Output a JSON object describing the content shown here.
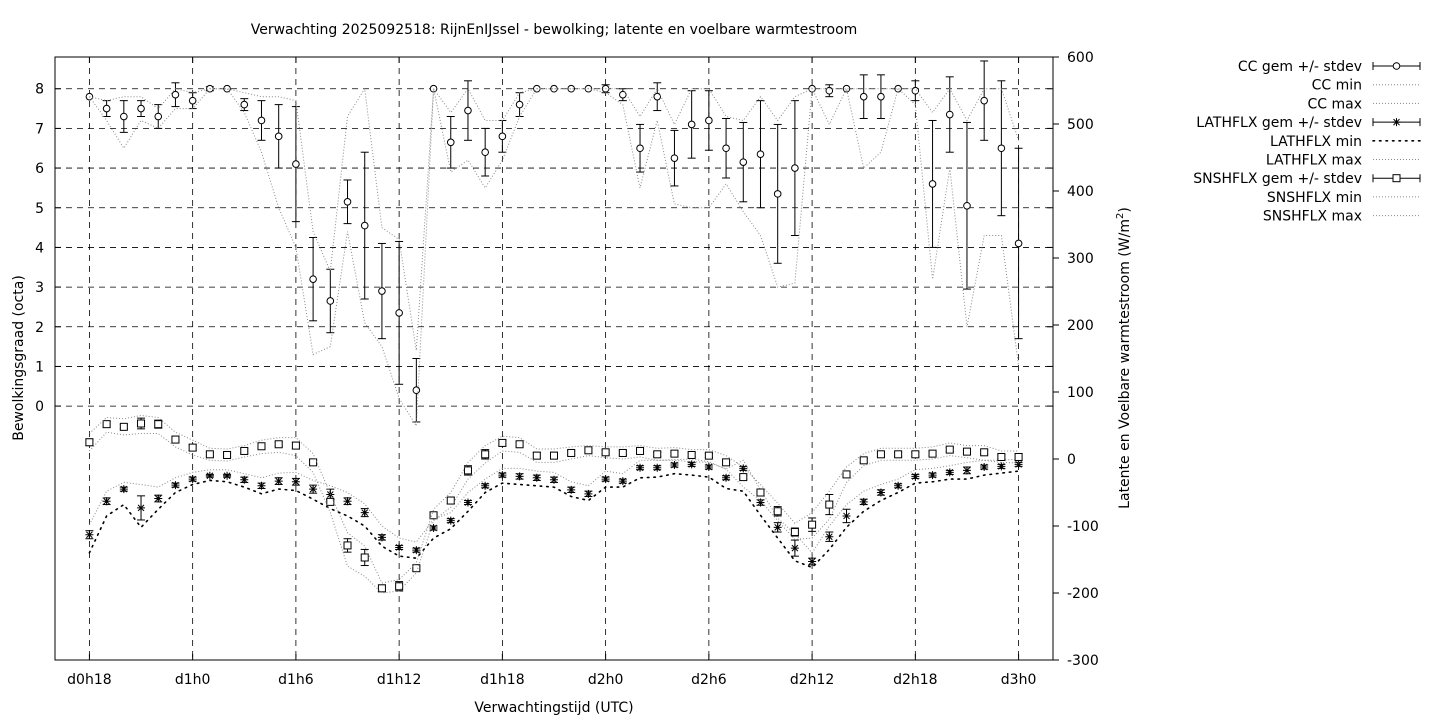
{
  "chart_data": {
    "type": "line",
    "title": "Verwachting 2025092518: RijnEnIJssel - bewolking; latente en voelbare warmtestroom",
    "xlabel": "Verwachtingstijd (UTC)",
    "ylabel": "Bewolkingsgraad (octa)",
    "y2label_main": "Latente en Voelbare warmtestroom (W/m",
    "y2label_sup": "2",
    "y2label_end": ")",
    "x_range_hours": [
      -2,
      56
    ],
    "x_ticks": [
      {
        "h": 0,
        "label": "d0h18"
      },
      {
        "h": 6,
        "label": "d1h0"
      },
      {
        "h": 12,
        "label": "d1h6"
      },
      {
        "h": 18,
        "label": "d1h12"
      },
      {
        "h": 24,
        "label": "d1h18"
      },
      {
        "h": 30,
        "label": "d2h0"
      },
      {
        "h": 36,
        "label": "d2h6"
      },
      {
        "h": 42,
        "label": "d2h12"
      },
      {
        "h": 48,
        "label": "d2h18"
      },
      {
        "h": 54,
        "label": "d3h0"
      }
    ],
    "y_ticks": [
      "0",
      "1",
      "2",
      "3",
      "4",
      "5",
      "6",
      "7",
      "8"
    ],
    "y2_ticks": [
      "600",
      "500",
      "400",
      "300",
      "200",
      "100",
      "0",
      "-100",
      "-200",
      "-300"
    ],
    "ylim": [
      -6.4,
      8.8
    ],
    "y2lim": [
      -300,
      600
    ],
    "grid": true,
    "legend_position": "outside-right",
    "legend": [
      {
        "label": "CC gem +/- stdev",
        "style": "errorbar-circle"
      },
      {
        "label": "CC min",
        "style": "dotted"
      },
      {
        "label": "CC max",
        "style": "dotted"
      },
      {
        "label": "LATHFLX gem +/- stdev",
        "style": "errorbar-star"
      },
      {
        "label": "LATHFLX min",
        "style": "dotted-sparse"
      },
      {
        "label": "LATHFLX max",
        "style": "dotted"
      },
      {
        "label": "SNSHFLX gem +/- stdev",
        "style": "errorbar-square"
      },
      {
        "label": "SNSHFLX min",
        "style": "dotted"
      },
      {
        "label": "SNSHFLX max",
        "style": "dotted"
      }
    ],
    "series": [
      {
        "name": "CC gem +/- stdev",
        "axis": "y1",
        "x": [
          0,
          1,
          2,
          3,
          4,
          5,
          6,
          7,
          8,
          9,
          10,
          11,
          12,
          13,
          14,
          15,
          16,
          17,
          18,
          19,
          20,
          21,
          22,
          23,
          24,
          25,
          26,
          27,
          28,
          29,
          30,
          31,
          32,
          33,
          34,
          35,
          36,
          37,
          38,
          39,
          40,
          41,
          42,
          43,
          44,
          45,
          46,
          47,
          48,
          49,
          50,
          51,
          52,
          53,
          54
        ],
        "values": [
          7.8,
          7.5,
          7.3,
          7.5,
          7.3,
          7.85,
          7.7,
          8.0,
          8.0,
          7.6,
          7.2,
          6.8,
          6.1,
          3.2,
          2.65,
          5.15,
          4.55,
          2.9,
          2.35,
          0.4,
          8.0,
          6.65,
          7.45,
          6.4,
          6.8,
          7.6,
          8.0,
          8.0,
          8.0,
          8.0,
          8.0,
          7.85,
          6.5,
          7.8,
          6.25,
          7.1,
          7.2,
          6.5,
          6.15,
          6.35,
          5.35,
          6.0,
          8.0,
          7.95,
          8.0,
          7.8,
          7.8,
          8.0,
          7.95,
          5.6,
          7.35,
          5.05,
          7.7,
          6.5,
          4.1
        ],
        "stdev": [
          0.0,
          0.2,
          0.4,
          0.2,
          0.3,
          0.3,
          0.2,
          0.05,
          0.0,
          0.15,
          0.5,
          0.8,
          1.45,
          1.05,
          0.8,
          0.55,
          1.85,
          1.2,
          1.8,
          0.8,
          0.0,
          0.65,
          0.75,
          0.6,
          0.4,
          0.3,
          0.0,
          0.0,
          0.0,
          0.0,
          0.1,
          0.15,
          0.6,
          0.35,
          0.7,
          0.85,
          0.75,
          0.75,
          1.0,
          1.35,
          1.75,
          1.7,
          0.0,
          0.15,
          0.0,
          0.55,
          0.55,
          0.0,
          0.25,
          1.6,
          0.95,
          2.1,
          1.0,
          1.7,
          2.4
        ]
      },
      {
        "name": "CC min",
        "axis": "y1",
        "x": [
          0,
          1,
          2,
          3,
          4,
          5,
          6,
          7,
          8,
          9,
          10,
          11,
          12,
          13,
          14,
          15,
          16,
          17,
          18,
          19,
          20,
          21,
          22,
          23,
          24,
          25,
          26,
          27,
          28,
          29,
          30,
          31,
          32,
          33,
          34,
          35,
          36,
          37,
          38,
          39,
          40,
          41,
          42,
          43,
          44,
          45,
          46,
          47,
          48,
          49,
          50,
          51,
          52,
          53,
          54
        ],
        "values": [
          7.8,
          7.2,
          6.5,
          7.2,
          7.0,
          7.5,
          7.5,
          8.0,
          8.0,
          7.4,
          6.4,
          5.0,
          4.0,
          1.3,
          1.5,
          4.4,
          2.1,
          1.5,
          0.2,
          -0.5,
          8.0,
          5.9,
          6.2,
          5.5,
          6.2,
          7.3,
          8.0,
          8.0,
          8.0,
          8.0,
          7.9,
          7.6,
          5.5,
          7.2,
          5.1,
          5.0,
          5.0,
          5.6,
          4.9,
          4.3,
          3.0,
          3.1,
          8.0,
          7.1,
          8.0,
          6.0,
          6.4,
          8.0,
          7.6,
          3.2,
          6.0,
          2.0,
          4.3,
          4.3,
          1.0
        ]
      },
      {
        "name": "CC max",
        "axis": "y1",
        "x": [
          0,
          1,
          2,
          3,
          4,
          5,
          6,
          7,
          8,
          9,
          10,
          11,
          12,
          13,
          14,
          15,
          16,
          17,
          18,
          19,
          20,
          21,
          22,
          23,
          24,
          25,
          26,
          27,
          28,
          29,
          30,
          31,
          32,
          33,
          34,
          35,
          36,
          37,
          38,
          39,
          40,
          41,
          42,
          43,
          44,
          45,
          46,
          47,
          48,
          49,
          50,
          51,
          52,
          53,
          54
        ],
        "values": [
          7.8,
          7.7,
          7.8,
          7.8,
          7.5,
          8.0,
          7.9,
          8.0,
          8.0,
          7.9,
          7.8,
          7.8,
          7.7,
          4.4,
          3.4,
          7.3,
          8.0,
          4.5,
          4.2,
          1.4,
          8.0,
          7.4,
          8.0,
          7.2,
          7.2,
          7.9,
          8.0,
          8.0,
          8.0,
          8.0,
          8.0,
          8.0,
          7.3,
          8.0,
          7.1,
          8.0,
          8.0,
          7.3,
          7.2,
          7.8,
          7.2,
          7.8,
          8.0,
          8.0,
          8.0,
          8.0,
          8.0,
          8.0,
          8.0,
          7.4,
          8.0,
          7.2,
          8.0,
          8.0,
          6.7
        ]
      },
      {
        "name": "LATHFLX gem +/- stdev",
        "axis": "y2",
        "x": [
          0,
          1,
          2,
          3,
          4,
          5,
          6,
          7,
          8,
          9,
          10,
          11,
          12,
          13,
          14,
          15,
          16,
          17,
          18,
          19,
          20,
          21,
          22,
          23,
          24,
          25,
          26,
          27,
          28,
          29,
          30,
          31,
          32,
          33,
          34,
          35,
          36,
          37,
          38,
          39,
          40,
          41,
          42,
          43,
          44,
          45,
          46,
          47,
          48,
          49,
          50,
          51,
          52,
          53,
          54
        ],
        "values": [
          -113,
          -63,
          -45,
          -73,
          -59,
          -39,
          -30,
          -25,
          -25,
          -31,
          -40,
          -33,
          -34,
          -45,
          -53,
          -63,
          -80,
          -117,
          -132,
          -136,
          -103,
          -92,
          -65,
          -40,
          -24,
          -26,
          -28,
          -31,
          -46,
          -52,
          -30,
          -33,
          -13,
          -13,
          -9,
          -8,
          -12,
          -28,
          -14,
          -65,
          -102,
          -133,
          -153,
          -116,
          -85,
          -64,
          -50,
          -40,
          -26,
          -24,
          -20,
          -17,
          -12,
          -11,
          -8
        ],
        "stdev": [
          6,
          5,
          3,
          18,
          5,
          3,
          3,
          2,
          2,
          4,
          4,
          5,
          5,
          6,
          8,
          5,
          6,
          4,
          3,
          3,
          3,
          3,
          3,
          3,
          3,
          4,
          4,
          4,
          4,
          4,
          3,
          3,
          3,
          3,
          3,
          3,
          3,
          3,
          3,
          4,
          7,
          12,
          5,
          7,
          10,
          4,
          4,
          3,
          3,
          3,
          3,
          5,
          3,
          3,
          3
        ]
      },
      {
        "name": "LATHFLX min",
        "axis": "y2",
        "x": [
          0,
          1,
          2,
          3,
          4,
          5,
          6,
          7,
          8,
          9,
          10,
          11,
          12,
          13,
          14,
          15,
          16,
          17,
          18,
          19,
          20,
          21,
          22,
          23,
          24,
          25,
          26,
          27,
          28,
          29,
          30,
          31,
          32,
          33,
          34,
          35,
          36,
          37,
          38,
          39,
          40,
          41,
          42,
          43,
          44,
          45,
          46,
          47,
          48,
          49,
          50,
          51,
          52,
          53,
          54
        ],
        "values": [
          -140,
          -85,
          -68,
          -102,
          -75,
          -50,
          -38,
          -32,
          -34,
          -42,
          -52,
          -45,
          -47,
          -60,
          -74,
          -85,
          -100,
          -130,
          -145,
          -148,
          -118,
          -104,
          -78,
          -50,
          -36,
          -38,
          -40,
          -42,
          -56,
          -62,
          -42,
          -42,
          -28,
          -27,
          -22,
          -24,
          -27,
          -44,
          -48,
          -84,
          -118,
          -152,
          -162,
          -135,
          -102,
          -78,
          -62,
          -50,
          -36,
          -34,
          -30,
          -30,
          -24,
          -21,
          -18
        ]
      },
      {
        "name": "LATHFLX max",
        "axis": "y2",
        "x": [
          0,
          1,
          2,
          3,
          4,
          5,
          6,
          7,
          8,
          9,
          10,
          11,
          12,
          13,
          14,
          15,
          16,
          17,
          18,
          19,
          20,
          21,
          22,
          23,
          24,
          25,
          26,
          27,
          28,
          29,
          30,
          31,
          32,
          33,
          34,
          35,
          36,
          37,
          38,
          39,
          40,
          41,
          42,
          43,
          44,
          45,
          46,
          47,
          48,
          49,
          50,
          51,
          52,
          53,
          54
        ],
        "values": [
          -98,
          -48,
          -35,
          -38,
          -42,
          -28,
          -20,
          -16,
          -16,
          -22,
          -28,
          -21,
          -20,
          -32,
          -40,
          -50,
          -67,
          -100,
          -118,
          -124,
          -90,
          -80,
          -50,
          -30,
          -14,
          -14,
          -18,
          -20,
          -34,
          -40,
          -18,
          -22,
          -2,
          -2,
          -1,
          0,
          -4,
          -15,
          -2,
          -46,
          -88,
          -112,
          -140,
          -100,
          -68,
          -48,
          -38,
          -30,
          -16,
          -14,
          -10,
          -5,
          -2,
          -2,
          0
        ]
      },
      {
        "name": "SNSHFLX gem +/- stdev",
        "axis": "y2",
        "x": [
          0,
          1,
          2,
          3,
          4,
          5,
          6,
          7,
          8,
          9,
          10,
          11,
          12,
          13,
          14,
          15,
          16,
          17,
          18,
          19,
          20,
          21,
          22,
          23,
          24,
          25,
          26,
          27,
          28,
          29,
          30,
          31,
          32,
          33,
          34,
          35,
          36,
          37,
          38,
          39,
          40,
          41,
          42,
          43,
          44,
          45,
          46,
          47,
          48,
          49,
          50,
          51,
          52,
          53,
          54
        ],
        "values": [
          25,
          52,
          48,
          53,
          52,
          29,
          17,
          7,
          6,
          12,
          19,
          22,
          20,
          -5,
          -64,
          -129,
          -147,
          -193,
          -190,
          -163,
          -84,
          -62,
          -17,
          7,
          24,
          22,
          5,
          5,
          9,
          13,
          10,
          9,
          12,
          7,
          8,
          6,
          5,
          -5,
          -27,
          -50,
          -78,
          -109,
          -98,
          -68,
          -23,
          -2,
          7,
          7,
          7,
          8,
          14,
          11,
          10,
          3,
          3
        ],
        "stdev": [
          5,
          4,
          3,
          8,
          6,
          5,
          4,
          3,
          3,
          3,
          3,
          3,
          5,
          3,
          4,
          10,
          12,
          5,
          7,
          3,
          4,
          5,
          7,
          7,
          4,
          3,
          5,
          5,
          3,
          3,
          3,
          3,
          3,
          3,
          3,
          3,
          3,
          3,
          3,
          4,
          7,
          6,
          10,
          15,
          3,
          3,
          3,
          3,
          3,
          3,
          3,
          3,
          3,
          3,
          5
        ]
      },
      {
        "name": "SNSHFLX min",
        "axis": "y2",
        "x": [
          0,
          1,
          2,
          3,
          4,
          5,
          6,
          7,
          8,
          9,
          10,
          11,
          12,
          13,
          14,
          15,
          16,
          17,
          18,
          19,
          20,
          21,
          22,
          23,
          24,
          25,
          26,
          27,
          28,
          29,
          30,
          31,
          32,
          33,
          34,
          35,
          36,
          37,
          38,
          39,
          40,
          41,
          42,
          43,
          44,
          45,
          46,
          47,
          48,
          49,
          50,
          51,
          52,
          53,
          54
        ],
        "values": [
          12,
          40,
          36,
          38,
          38,
          18,
          6,
          -2,
          -3,
          3,
          8,
          10,
          5,
          -20,
          -80,
          -160,
          -175,
          -200,
          -197,
          -170,
          -92,
          -72,
          -30,
          -6,
          12,
          10,
          -5,
          -5,
          0,
          5,
          2,
          0,
          3,
          -2,
          -2,
          -4,
          -5,
          -15,
          -42,
          -62,
          -92,
          -120,
          -118,
          -90,
          -35,
          -10,
          -2,
          -2,
          -2,
          0,
          5,
          2,
          -2,
          -5,
          -6
        ]
      },
      {
        "name": "SNSHFLX max",
        "axis": "y2",
        "x": [
          0,
          1,
          2,
          3,
          4,
          5,
          6,
          7,
          8,
          9,
          10,
          11,
          12,
          13,
          14,
          15,
          16,
          17,
          18,
          19,
          20,
          21,
          22,
          23,
          24,
          25,
          26,
          27,
          28,
          29,
          30,
          31,
          32,
          33,
          34,
          35,
          36,
          37,
          38,
          39,
          40,
          41,
          42,
          43,
          44,
          45,
          46,
          47,
          48,
          49,
          50,
          51,
          52,
          53,
          54
        ],
        "values": [
          38,
          62,
          60,
          65,
          62,
          40,
          28,
          16,
          15,
          20,
          28,
          32,
          32,
          8,
          -52,
          -110,
          -130,
          -185,
          -180,
          -155,
          -75,
          -50,
          -5,
          20,
          34,
          32,
          15,
          15,
          18,
          20,
          18,
          18,
          20,
          16,
          17,
          14,
          14,
          5,
          -12,
          -38,
          -66,
          -96,
          -80,
          -48,
          -12,
          8,
          16,
          16,
          16,
          18,
          24,
          20,
          20,
          12,
          12
        ]
      }
    ]
  }
}
